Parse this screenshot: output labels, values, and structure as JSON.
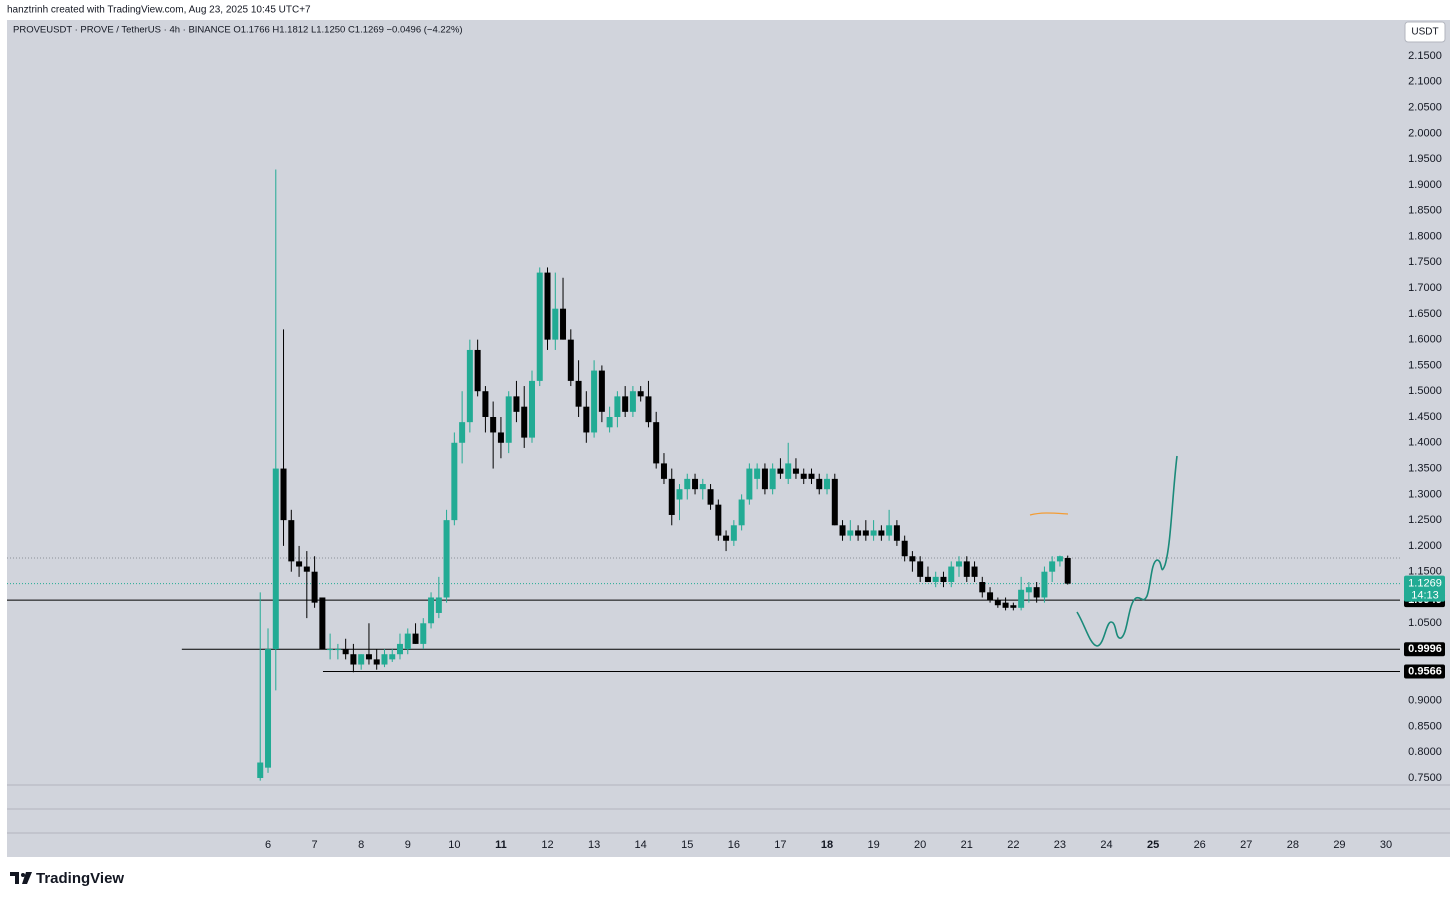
{
  "chart_data": {
    "type": "candlestick",
    "watermark": "hanztrinh created with TradingView.com, Aug 23, 2025 10:45 UTC+7",
    "title": "PROVEUSDT · PROVE / TetherUS · 4h · BINANCE   O1.1766   H1.1812   L1.1250   C1.1269   −0.0496 (−4.22%)",
    "currency": "USDT",
    "footer": "TradingView",
    "up_color": "#22ab94",
    "down_color": "#000000",
    "x": [
      5.833,
      6,
      6.167,
      6.333,
      6.5,
      6.667,
      6.833,
      7,
      7.167,
      7.333,
      7.5,
      7.667,
      7.833,
      8,
      8.167,
      8.333,
      8.5,
      8.667,
      8.833,
      9,
      9.167,
      9.333,
      9.5,
      9.667,
      9.833,
      10,
      10.167,
      10.333,
      10.5,
      10.667,
      10.833,
      11,
      11.167,
      11.333,
      11.5,
      11.667,
      11.833,
      12,
      12.167,
      12.333,
      12.5,
      12.667,
      12.833,
      13,
      13.167,
      13.333,
      13.5,
      13.667,
      13.833,
      14,
      14.167,
      14.333,
      14.5,
      14.667,
      14.833,
      15,
      15.167,
      15.333,
      15.5,
      15.667,
      15.833,
      16,
      16.167,
      16.333,
      16.5,
      16.667,
      16.833,
      17,
      17.167,
      17.333,
      17.5,
      17.667,
      17.833,
      18,
      18.167,
      18.333,
      18.5,
      18.667,
      18.833,
      19,
      19.167,
      19.333,
      19.5,
      19.667,
      19.833,
      20,
      20.167,
      20.333,
      20.5,
      20.667,
      20.833,
      21,
      21.167,
      21.333,
      21.5,
      21.667,
      21.833,
      22,
      22.167,
      22.333,
      22.5,
      22.667,
      22.833,
      23,
      23.167
    ],
    "open": [
      0.75,
      0.77,
      1.0,
      1.35,
      1.25,
      1.17,
      1.16,
      1.15,
      1.1,
      1.0,
      1.0,
      1.0,
      0.99,
      0.97,
      0.99,
      0.98,
      0.97,
      0.98,
      0.99,
      1.0,
      1.03,
      1.01,
      1.05,
      1.07,
      1.1,
      1.25,
      1.4,
      1.44,
      1.58,
      1.5,
      1.45,
      1.42,
      1.4,
      1.49,
      1.47,
      1.41,
      1.52,
      1.73,
      1.6,
      1.66,
      1.6,
      1.52,
      1.47,
      1.42,
      1.54,
      1.43,
      1.45,
      1.49,
      1.46,
      1.5,
      1.49,
      1.44,
      1.36,
      1.33,
      1.29,
      1.31,
      1.33,
      1.31,
      1.31,
      1.28,
      1.22,
      1.21,
      1.24,
      1.29,
      1.33,
      1.35,
      1.31,
      1.35,
      1.33,
      1.35,
      1.34,
      1.34,
      1.33,
      1.31,
      1.33,
      1.24,
      1.22,
      1.23,
      1.23,
      1.22,
      1.23,
      1.22,
      1.24,
      1.21,
      1.18,
      1.17,
      1.14,
      1.13,
      1.14,
      1.13,
      1.16,
      1.17,
      1.16,
      1.13,
      1.11,
      1.095,
      1.09,
      1.085,
      1.08,
      1.11,
      1.12,
      1.1,
      1.15,
      1.17,
      1.1766
    ],
    "high": [
      1.11,
      1.04,
      1.93,
      1.62,
      1.27,
      1.2,
      1.19,
      1.18,
      1.1,
      1.03,
      1.01,
      1.02,
      1.01,
      0.99,
      1.05,
      1.0,
      1.0,
      1.0,
      1.03,
      1.04,
      1.05,
      1.06,
      1.11,
      1.14,
      1.27,
      1.42,
      1.5,
      1.6,
      1.6,
      1.51,
      1.48,
      1.45,
      1.5,
      1.52,
      1.51,
      1.54,
      1.74,
      1.74,
      1.73,
      1.72,
      1.62,
      1.56,
      1.5,
      1.56,
      1.55,
      1.47,
      1.5,
      1.51,
      1.51,
      1.51,
      1.52,
      1.46,
      1.38,
      1.35,
      1.32,
      1.34,
      1.34,
      1.33,
      1.32,
      1.29,
      1.23,
      1.25,
      1.3,
      1.36,
      1.36,
      1.36,
      1.36,
      1.37,
      1.4,
      1.37,
      1.35,
      1.35,
      1.34,
      1.34,
      1.34,
      1.25,
      1.25,
      1.24,
      1.25,
      1.25,
      1.24,
      1.27,
      1.25,
      1.22,
      1.19,
      1.18,
      1.16,
      1.15,
      1.15,
      1.17,
      1.18,
      1.18,
      1.17,
      1.14,
      1.12,
      1.1,
      1.1,
      1.09,
      1.14,
      1.13,
      1.13,
      1.16,
      1.18,
      1.1812,
      1.1812
    ],
    "low": [
      0.745,
      0.76,
      0.92,
      1.2,
      1.15,
      1.14,
      1.06,
      1.08,
      1.0,
      0.98,
      0.98,
      0.98,
      0.955,
      0.96,
      0.97,
      0.96,
      0.965,
      0.975,
      0.98,
      0.99,
      1.01,
      1.0,
      1.04,
      1.06,
      1.09,
      1.24,
      1.36,
      1.42,
      1.49,
      1.42,
      1.35,
      1.37,
      1.38,
      1.44,
      1.39,
      1.4,
      1.51,
      1.58,
      1.58,
      1.6,
      1.51,
      1.45,
      1.4,
      1.41,
      1.44,
      1.42,
      1.43,
      1.45,
      1.45,
      1.48,
      1.43,
      1.35,
      1.32,
      1.24,
      1.25,
      1.29,
      1.3,
      1.29,
      1.27,
      1.21,
      1.19,
      1.2,
      1.23,
      1.28,
      1.31,
      1.3,
      1.3,
      1.33,
      1.32,
      1.33,
      1.32,
      1.32,
      1.3,
      1.3,
      1.24,
      1.21,
      1.21,
      1.21,
      1.21,
      1.21,
      1.21,
      1.21,
      1.2,
      1.17,
      1.15,
      1.13,
      1.13,
      1.12,
      1.12,
      1.12,
      1.14,
      1.13,
      1.13,
      1.1,
      1.09,
      1.08,
      1.075,
      1.075,
      1.075,
      1.09,
      1.09,
      1.09,
      1.13,
      1.16,
      1.125
    ],
    "close": [
      0.78,
      1.0,
      1.35,
      1.25,
      1.17,
      1.16,
      1.15,
      1.09,
      1.0,
      1.0,
      1.0,
      0.99,
      0.97,
      0.99,
      0.98,
      0.97,
      0.99,
      0.99,
      1.01,
      1.03,
      1.01,
      1.05,
      1.1,
      1.1,
      1.25,
      1.4,
      1.44,
      1.58,
      1.5,
      1.45,
      1.42,
      1.4,
      1.49,
      1.46,
      1.41,
      1.52,
      1.73,
      1.6,
      1.66,
      1.6,
      1.52,
      1.47,
      1.42,
      1.54,
      1.46,
      1.45,
      1.49,
      1.46,
      1.5,
      1.49,
      1.44,
      1.36,
      1.33,
      1.26,
      1.31,
      1.33,
      1.31,
      1.32,
      1.28,
      1.22,
      1.21,
      1.24,
      1.29,
      1.35,
      1.35,
      1.31,
      1.35,
      1.34,
      1.36,
      1.34,
      1.33,
      1.33,
      1.31,
      1.33,
      1.24,
      1.22,
      1.23,
      1.22,
      1.22,
      1.23,
      1.22,
      1.24,
      1.21,
      1.18,
      1.17,
      1.14,
      1.13,
      1.14,
      1.13,
      1.16,
      1.17,
      1.14,
      1.14,
      1.11,
      1.095,
      1.085,
      1.08,
      1.08,
      1.115,
      1.12,
      1.1,
      1.15,
      1.17,
      1.18,
      1.1269
    ],
    "xlim": [
      0.397,
      30.3
    ],
    "ylim": [
      0.7364,
      2.2198
    ],
    "xticks": [
      6,
      7,
      8,
      9,
      10,
      11,
      12,
      13,
      14,
      15,
      16,
      17,
      18,
      19,
      20,
      21,
      22,
      23,
      24,
      25,
      26,
      27,
      28,
      29,
      30
    ],
    "bold_xticks": [
      11,
      18,
      25
    ],
    "yticks": [
      {
        "value": 0.75,
        "label": "0.7500"
      },
      {
        "value": 0.8,
        "label": "0.8000"
      },
      {
        "value": 0.85,
        "label": "0.8500"
      },
      {
        "value": 0.9,
        "label": "0.9000"
      },
      {
        "value": 0.95,
        "label": "0.9500"
      },
      {
        "value": 1.0,
        "label": "1.0000"
      },
      {
        "value": 1.05,
        "label": "1.0500"
      },
      {
        "value": 1.1,
        "label": "1.1000"
      },
      {
        "value": 1.15,
        "label": "1.1500"
      },
      {
        "value": 1.2,
        "label": "1.2000"
      },
      {
        "value": 1.25,
        "label": "1.2500"
      },
      {
        "value": 1.3,
        "label": "1.3000"
      },
      {
        "value": 1.35,
        "label": "1.3500"
      },
      {
        "value": 1.4,
        "label": "1.4000"
      },
      {
        "value": 1.45,
        "label": "1.4500"
      },
      {
        "value": 1.5,
        "label": "1.5000"
      },
      {
        "value": 1.55,
        "label": "1.5500"
      },
      {
        "value": 1.6,
        "label": "1.6000"
      },
      {
        "value": 1.65,
        "label": "1.6500"
      },
      {
        "value": 1.7,
        "label": "1.7000"
      },
      {
        "value": 1.75,
        "label": "1.7500"
      },
      {
        "value": 1.8,
        "label": "1.8000"
      },
      {
        "value": 1.85,
        "label": "1.8500"
      },
      {
        "value": 1.9,
        "label": "1.9000"
      },
      {
        "value": 1.95,
        "label": "1.9500"
      },
      {
        "value": 2.0,
        "label": "2.0000"
      },
      {
        "value": 2.05,
        "label": "2.0500"
      },
      {
        "value": 2.1,
        "label": "2.1000"
      },
      {
        "value": 2.15,
        "label": "2.1500"
      }
    ],
    "horizontal_lines": [
      {
        "value": 1.0949
      },
      {
        "value": 0.9996,
        "x_start": 4.15
      },
      {
        "value": 0.9566,
        "x_start": 7.18
      }
    ],
    "last_price": 1.1269,
    "countdown": "14:13",
    "reference_line": 1.1766
  }
}
